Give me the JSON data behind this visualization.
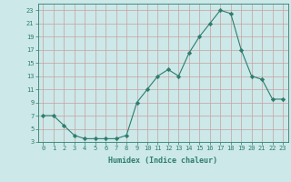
{
  "x": [
    0,
    1,
    2,
    3,
    4,
    5,
    6,
    7,
    8,
    9,
    10,
    11,
    12,
    13,
    14,
    15,
    16,
    17,
    18,
    19,
    20,
    21,
    22,
    23
  ],
  "y": [
    7,
    7,
    5.5,
    4,
    3.5,
    3.5,
    3.5,
    3.5,
    4,
    9,
    11,
    13,
    14,
    13,
    16.5,
    19,
    21,
    23,
    22.5,
    17,
    13,
    12.5,
    9.5,
    9.5
  ],
  "line_color": "#2e7d6e",
  "marker": "D",
  "marker_size": 2.2,
  "bg_color": "#cce8e8",
  "grid_color": "#c8a0a0",
  "xlabel": "Humidex (Indice chaleur)",
  "ylim": [
    3,
    24
  ],
  "xlim": [
    -0.5,
    23.5
  ],
  "yticks": [
    3,
    5,
    7,
    9,
    11,
    13,
    15,
    17,
    19,
    21,
    23
  ],
  "xticks": [
    0,
    1,
    2,
    3,
    4,
    5,
    6,
    7,
    8,
    9,
    10,
    11,
    12,
    13,
    14,
    15,
    16,
    17,
    18,
    19,
    20,
    21,
    22,
    23
  ],
  "tick_fontsize": 5.0,
  "xlabel_fontsize": 6.0,
  "line_width": 0.8
}
